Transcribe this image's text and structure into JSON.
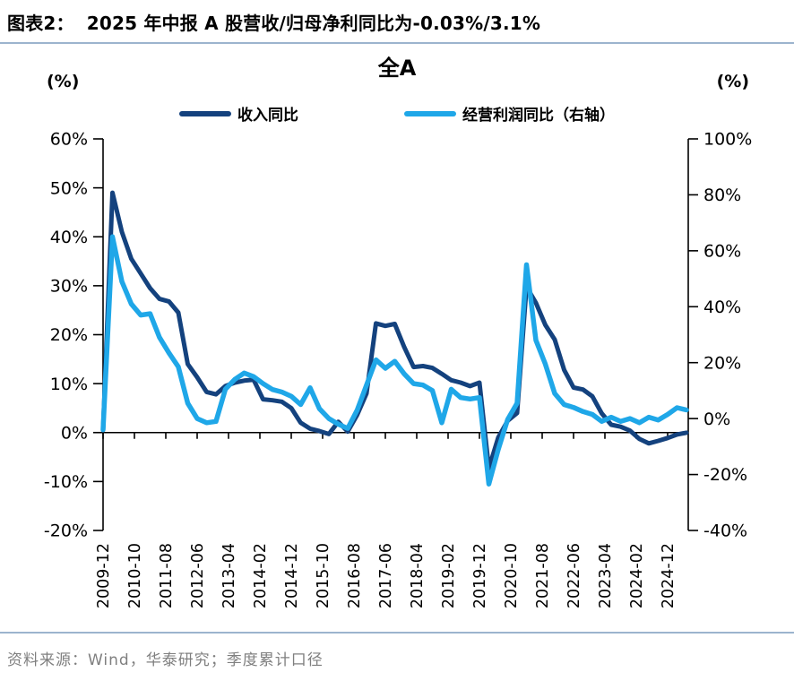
{
  "header": {
    "tag": "图表2：",
    "title": "2025 年中报 A 股营收/归母净利同比为-0.03%/3.1%"
  },
  "chart": {
    "title": "全A",
    "left_axis_unit": "(%)",
    "right_axis_unit": "(%)"
  },
  "footer": {
    "source": "资料来源：Wind，华泰研究；季度累计口径"
  },
  "chart_data": {
    "type": "line",
    "title": "全A",
    "grid": false,
    "legend_position": "top",
    "colors": {
      "revenue": "#14427E",
      "profit": "#1FA7E8",
      "axis": "#000000",
      "divider": "#9CB4CE",
      "source_text": "#7F7F7F"
    },
    "left_axis": {
      "unit": "(%)",
      "min": -20,
      "max": 60,
      "tick_step": 10,
      "tick_values": [
        60,
        50,
        40,
        30,
        20,
        10,
        0,
        -10,
        -20
      ],
      "tick_labels": [
        "60%",
        "50%",
        "40%",
        "30%",
        "20%",
        "10%",
        "0%",
        "-10%",
        "-20%"
      ]
    },
    "right_axis": {
      "unit": "(%)",
      "min": -40,
      "max": 100,
      "tick_step": 20,
      "tick_values": [
        100,
        80,
        60,
        40,
        20,
        0,
        -20,
        -40
      ],
      "tick_labels": [
        "100%",
        "80%",
        "60%",
        "40%",
        "20%",
        "0%",
        "-20%",
        "-40%"
      ]
    },
    "x_tick_interval_months": 10,
    "x_tick_labels": [
      "2009-12",
      "2010-10",
      "2011-08",
      "2012-06",
      "2013-04",
      "2014-02",
      "2014-12",
      "2015-10",
      "2016-08",
      "2017-06",
      "2018-04",
      "2019-02",
      "2019-12",
      "2020-10",
      "2021-08",
      "2022-06",
      "2023-04",
      "2024-02",
      "2024-12"
    ],
    "x": [
      "2009-12",
      "2010-03",
      "2010-06",
      "2010-09",
      "2010-12",
      "2011-03",
      "2011-06",
      "2011-09",
      "2011-12",
      "2012-03",
      "2012-06",
      "2012-09",
      "2012-12",
      "2013-03",
      "2013-06",
      "2013-09",
      "2013-12",
      "2014-03",
      "2014-06",
      "2014-09",
      "2014-12",
      "2015-03",
      "2015-06",
      "2015-09",
      "2015-12",
      "2016-03",
      "2016-06",
      "2016-09",
      "2016-12",
      "2017-03",
      "2017-06",
      "2017-09",
      "2017-12",
      "2018-03",
      "2018-06",
      "2018-09",
      "2018-12",
      "2019-03",
      "2019-06",
      "2019-09",
      "2019-12",
      "2020-03",
      "2020-06",
      "2020-09",
      "2020-12",
      "2021-03",
      "2021-06",
      "2021-09",
      "2021-12",
      "2022-03",
      "2022-06",
      "2022-09",
      "2022-12",
      "2023-03",
      "2023-06",
      "2023-09",
      "2023-12",
      "2024-03",
      "2024-06",
      "2024-09",
      "2024-12",
      "2025-03",
      "2025-06"
    ],
    "series": [
      {
        "name": "收入同比",
        "axis": "left",
        "color": "#14427E",
        "width": 5,
        "latest_value_pct": -0.03,
        "values": [
          0.5,
          49,
          41,
          35.5,
          32.5,
          29.5,
          27.3,
          26.8,
          24.5,
          14,
          11.3,
          8.3,
          7.8,
          9.5,
          10.2,
          10.6,
          10.8,
          6.8,
          6.6,
          6.3,
          5.0,
          2.0,
          0.8,
          0.3,
          -0.3,
          2.2,
          0.2,
          3.6,
          8,
          22.3,
          21.8,
          22.2,
          17.5,
          13.4,
          13.6,
          13.2,
          12.0,
          10.7,
          10.2,
          9.5,
          10.2,
          -7.3,
          -1.0,
          2.4,
          4.0,
          29.8,
          26.5,
          22.0,
          19.0,
          12.8,
          9.2,
          8.8,
          7.4,
          3.9,
          1.6,
          1.2,
          0.4,
          -1.3,
          -2.2,
          -1.7,
          -1.1,
          -0.4,
          -0.03
        ]
      },
      {
        "name": "经营利润同比（右轴）",
        "axis": "right",
        "color": "#1FA7E8",
        "width": 5.5,
        "latest_value_pct": 3.1,
        "values": [
          -4,
          65,
          49,
          41,
          37,
          37.5,
          29,
          23.5,
          18.5,
          5.5,
          0,
          -1.5,
          -1,
          10.5,
          14,
          16.3,
          15,
          12.5,
          10.4,
          9.5,
          8,
          5,
          11,
          3.5,
          0,
          -2,
          -3.5,
          3,
          12,
          21,
          18,
          20.5,
          16,
          12.5,
          12,
          10,
          -1.5,
          10.5,
          7.5,
          7,
          7.5,
          -23.4,
          -11,
          -0.3,
          5.5,
          55,
          28,
          19.5,
          9,
          5,
          4,
          2.5,
          1.5,
          -1,
          0.5,
          -1,
          0,
          -1.5,
          0.5,
          -0.5,
          1.5,
          3.9,
          3.1
        ]
      }
    ]
  }
}
